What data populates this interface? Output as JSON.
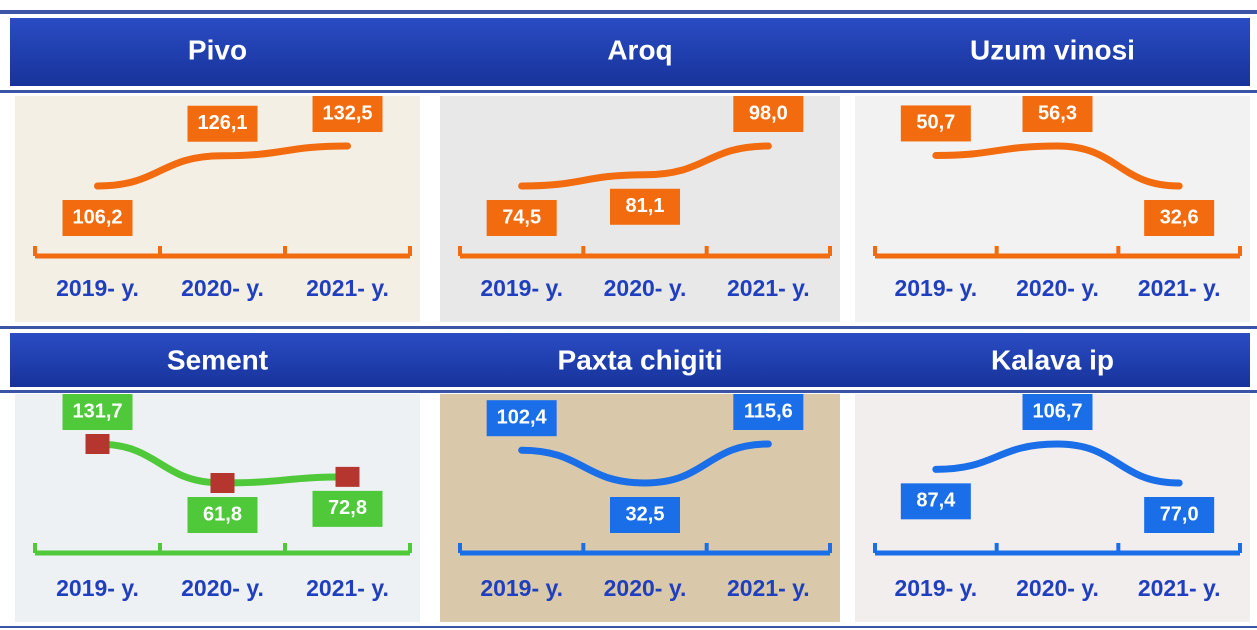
{
  "chart_data": [
    {
      "type": "line",
      "title": "Pivo",
      "categories": [
        "2019- y.",
        "2020- y.",
        "2021- y."
      ],
      "values": [
        106.2,
        126.1,
        132.5
      ],
      "value_labels": [
        "106,2",
        "126,1",
        "132,5"
      ],
      "color": "#f26b0f"
    },
    {
      "type": "line",
      "title": "Aroq",
      "categories": [
        "2019- y.",
        "2020- y.",
        "2021- y."
      ],
      "values": [
        74.5,
        81.1,
        98.0
      ],
      "value_labels": [
        "74,5",
        "81,1",
        "98,0"
      ],
      "color": "#f26b0f"
    },
    {
      "type": "line",
      "title": "Uzum vinosi",
      "categories": [
        "2019- y.",
        "2020- y.",
        "2021- y."
      ],
      "values": [
        50.7,
        56.3,
        32.6
      ],
      "value_labels": [
        "50,7",
        "56,3",
        "32,6"
      ],
      "color": "#f26b0f"
    },
    {
      "type": "line",
      "title": "Sement",
      "categories": [
        "2019- y.",
        "2020- y.",
        "2021- y."
      ],
      "values": [
        131.7,
        61.8,
        72.8
      ],
      "value_labels": [
        "131,7",
        "61,8",
        "72,8"
      ],
      "color": "#4fc93a",
      "marker_color": "#b5362e"
    },
    {
      "type": "line",
      "title": "Paxta chigiti",
      "categories": [
        "2019- y.",
        "2020- y.",
        "2021- y."
      ],
      "values": [
        102.4,
        32.5,
        115.6
      ],
      "value_labels": [
        "102,4",
        "32,5",
        "115,6"
      ],
      "color": "#1a6ee8"
    },
    {
      "type": "line",
      "title": "Kalava ip",
      "categories": [
        "2019- y.",
        "2020- y.",
        "2021- y."
      ],
      "values": [
        87.4,
        106.7,
        77.0
      ],
      "value_labels": [
        "87,4",
        "106,7",
        "77,0"
      ],
      "color": "#1a6ee8"
    }
  ]
}
